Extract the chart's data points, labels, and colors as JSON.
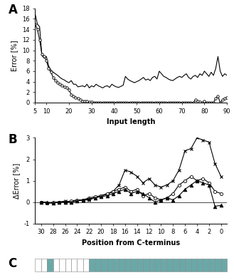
{
  "panel_A": {
    "title": "A",
    "xlabel": "Input length",
    "ylabel": "Error [%]",
    "ylim": [
      0,
      18
    ],
    "yticks": [
      0,
      2,
      4,
      6,
      8,
      10,
      12,
      14,
      16,
      18
    ],
    "xlim": [
      5,
      90
    ],
    "xticks": [
      5,
      10,
      20,
      30,
      40,
      50,
      60,
      70,
      80,
      90
    ],
    "line1_x": [
      5,
      6,
      7,
      8,
      9,
      10,
      11,
      12,
      13,
      14,
      15,
      16,
      17,
      18,
      19,
      20,
      21,
      22,
      23,
      24,
      25,
      26,
      27,
      28,
      29,
      30,
      31,
      32,
      33,
      34,
      35,
      36,
      37,
      38,
      39,
      40,
      41,
      42,
      43,
      44,
      45,
      46,
      47,
      48,
      49,
      50,
      51,
      52,
      53,
      54,
      55,
      56,
      57,
      58,
      59,
      60,
      61,
      62,
      63,
      64,
      65,
      66,
      67,
      68,
      69,
      70,
      71,
      72,
      73,
      74,
      75,
      76,
      77,
      78,
      79,
      80,
      81,
      82,
      83,
      84,
      85,
      86,
      87,
      88,
      89,
      90
    ],
    "line1_y": [
      17.0,
      15.0,
      14.5,
      9.0,
      8.5,
      8.8,
      7.0,
      6.2,
      5.8,
      5.5,
      5.2,
      4.8,
      4.5,
      4.3,
      4.0,
      3.8,
      4.2,
      3.5,
      3.5,
      3.0,
      3.1,
      3.2,
      3.0,
      3.5,
      2.8,
      3.2,
      3.0,
      3.5,
      3.2,
      3.0,
      2.8,
      3.1,
      3.2,
      2.9,
      3.5,
      3.2,
      3.0,
      2.9,
      3.1,
      3.3,
      5.0,
      4.5,
      4.2,
      4.0,
      3.8,
      4.0,
      4.2,
      4.5,
      4.8,
      4.3,
      4.5,
      4.2,
      4.8,
      5.0,
      4.5,
      6.0,
      5.5,
      5.0,
      4.8,
      4.5,
      4.3,
      4.2,
      4.5,
      4.8,
      5.0,
      4.8,
      5.2,
      5.5,
      4.8,
      4.5,
      5.0,
      5.2,
      4.8,
      5.5,
      5.2,
      6.0,
      5.5,
      5.0,
      5.8,
      5.2,
      6.5,
      8.8,
      6.0,
      5.0,
      5.5,
      5.2
    ],
    "line2_x": [
      5,
      6,
      7,
      8,
      9,
      10,
      11,
      12,
      13,
      14,
      15,
      16,
      17,
      18,
      19,
      20,
      21,
      22,
      23,
      24,
      25,
      26,
      27,
      28,
      29,
      30,
      31,
      32,
      33,
      34,
      35,
      36,
      37,
      38,
      39,
      40,
      41,
      42,
      43,
      44,
      45,
      46,
      47,
      48,
      49,
      50,
      51,
      52,
      53,
      54,
      55,
      56,
      57,
      58,
      59,
      60,
      61,
      62,
      63,
      64,
      65,
      66,
      67,
      68,
      69,
      70,
      71,
      72,
      73,
      74,
      75,
      76,
      77,
      78,
      79,
      80,
      81,
      82,
      83,
      84,
      85,
      86,
      87,
      88,
      89,
      90
    ],
    "line2_y": [
      15.0,
      14.0,
      12.0,
      9.2,
      8.8,
      8.0,
      6.5,
      5.8,
      4.8,
      4.2,
      3.8,
      3.5,
      3.2,
      3.0,
      2.8,
      2.5,
      1.5,
      1.2,
      1.0,
      0.8,
      0.5,
      0.3,
      0.2,
      0.2,
      0.1,
      0.1,
      0.0,
      0.0,
      0.0,
      0.0,
      0.0,
      0.0,
      0.0,
      0.0,
      0.0,
      0.0,
      0.0,
      0.0,
      0.0,
      0.0,
      0.0,
      0.0,
      0.0,
      0.0,
      0.0,
      0.0,
      0.0,
      0.0,
      0.0,
      0.0,
      0.0,
      0.0,
      0.0,
      0.0,
      0.0,
      0.0,
      0.0,
      0.0,
      0.0,
      0.0,
      0.0,
      0.0,
      0.0,
      0.0,
      0.0,
      0.0,
      0.0,
      0.0,
      0.0,
      0.0,
      0.0,
      0.5,
      0.2,
      0.1,
      0.0,
      0.2,
      0.0,
      0.0,
      0.0,
      0.0,
      0.8,
      1.2,
      0.0,
      0.5,
      0.8,
      1.0
    ]
  },
  "panel_B": {
    "title": "B",
    "xlabel": "Position from C-terminus",
    "ylabel": "ΔError [%]",
    "ylim": [
      -1,
      3
    ],
    "yticks": [
      -1,
      0,
      1,
      2,
      3
    ],
    "x_positions": [
      30,
      29,
      28,
      27,
      26,
      25,
      24,
      23,
      22,
      21,
      20,
      19,
      18,
      17,
      16,
      15,
      14,
      13,
      12,
      11,
      10,
      9,
      8,
      7,
      6,
      5,
      4,
      3,
      2,
      1,
      0
    ],
    "xticks": [
      30,
      28,
      26,
      24,
      22,
      20,
      18,
      16,
      14,
      12,
      10,
      8,
      6,
      4,
      2,
      0
    ],
    "line_y_cross": [
      0.0,
      -0.05,
      -0.05,
      0.0,
      0.05,
      0.0,
      0.05,
      0.1,
      0.1,
      0.2,
      0.3,
      0.35,
      0.5,
      0.8,
      1.5,
      1.4,
      1.2,
      0.9,
      1.1,
      0.8,
      0.7,
      0.8,
      1.0,
      1.5,
      2.4,
      2.5,
      3.0,
      2.9,
      2.8,
      1.8,
      1.2
    ],
    "line_y_circle": [
      0.0,
      -0.05,
      0.0,
      0.0,
      0.0,
      0.05,
      0.1,
      0.1,
      0.2,
      0.25,
      0.3,
      0.4,
      0.5,
      0.6,
      0.7,
      0.5,
      0.6,
      0.3,
      0.4,
      0.2,
      0.1,
      0.2,
      0.4,
      0.8,
      1.0,
      1.2,
      1.0,
      1.1,
      0.9,
      0.5,
      0.4
    ],
    "line_y_triangle": [
      0.0,
      0.0,
      -0.05,
      0.0,
      0.0,
      0.0,
      0.05,
      0.1,
      0.15,
      0.2,
      0.25,
      0.3,
      0.4,
      0.5,
      0.6,
      0.4,
      0.5,
      0.4,
      0.2,
      0.0,
      0.1,
      0.2,
      0.1,
      0.3,
      0.6,
      0.8,
      1.0,
      0.9,
      0.8,
      -0.2,
      -0.15
    ]
  },
  "panel_C": {
    "title": "C",
    "n_cells": 32,
    "colors": [
      "#ffffff",
      "#ffffff",
      "#6aA8A8",
      "#ffffff",
      "#ffffff",
      "#ffffff",
      "#ffffff",
      "#ffffff",
      "#ffffff",
      "#6aA8A8",
      "#6aA8A8",
      "#6aA8A8",
      "#6aA8A8",
      "#6aA8A8",
      "#6aA8A8",
      "#6aA8A8",
      "#6aA8A8",
      "#6aA8A8",
      "#6aA8A8",
      "#6aA8A8",
      "#6aA8A8",
      "#6aA8A8",
      "#6aA8A8",
      "#6aA8A8",
      "#6aA8A8",
      "#6aA8A8",
      "#6aA8A8",
      "#6aA8A8",
      "#6aA8A8",
      "#6aA8A8",
      "#6aA8A8",
      "#6aA8A8"
    ]
  },
  "bg_color": "#ffffff",
  "line_color": "#000000"
}
